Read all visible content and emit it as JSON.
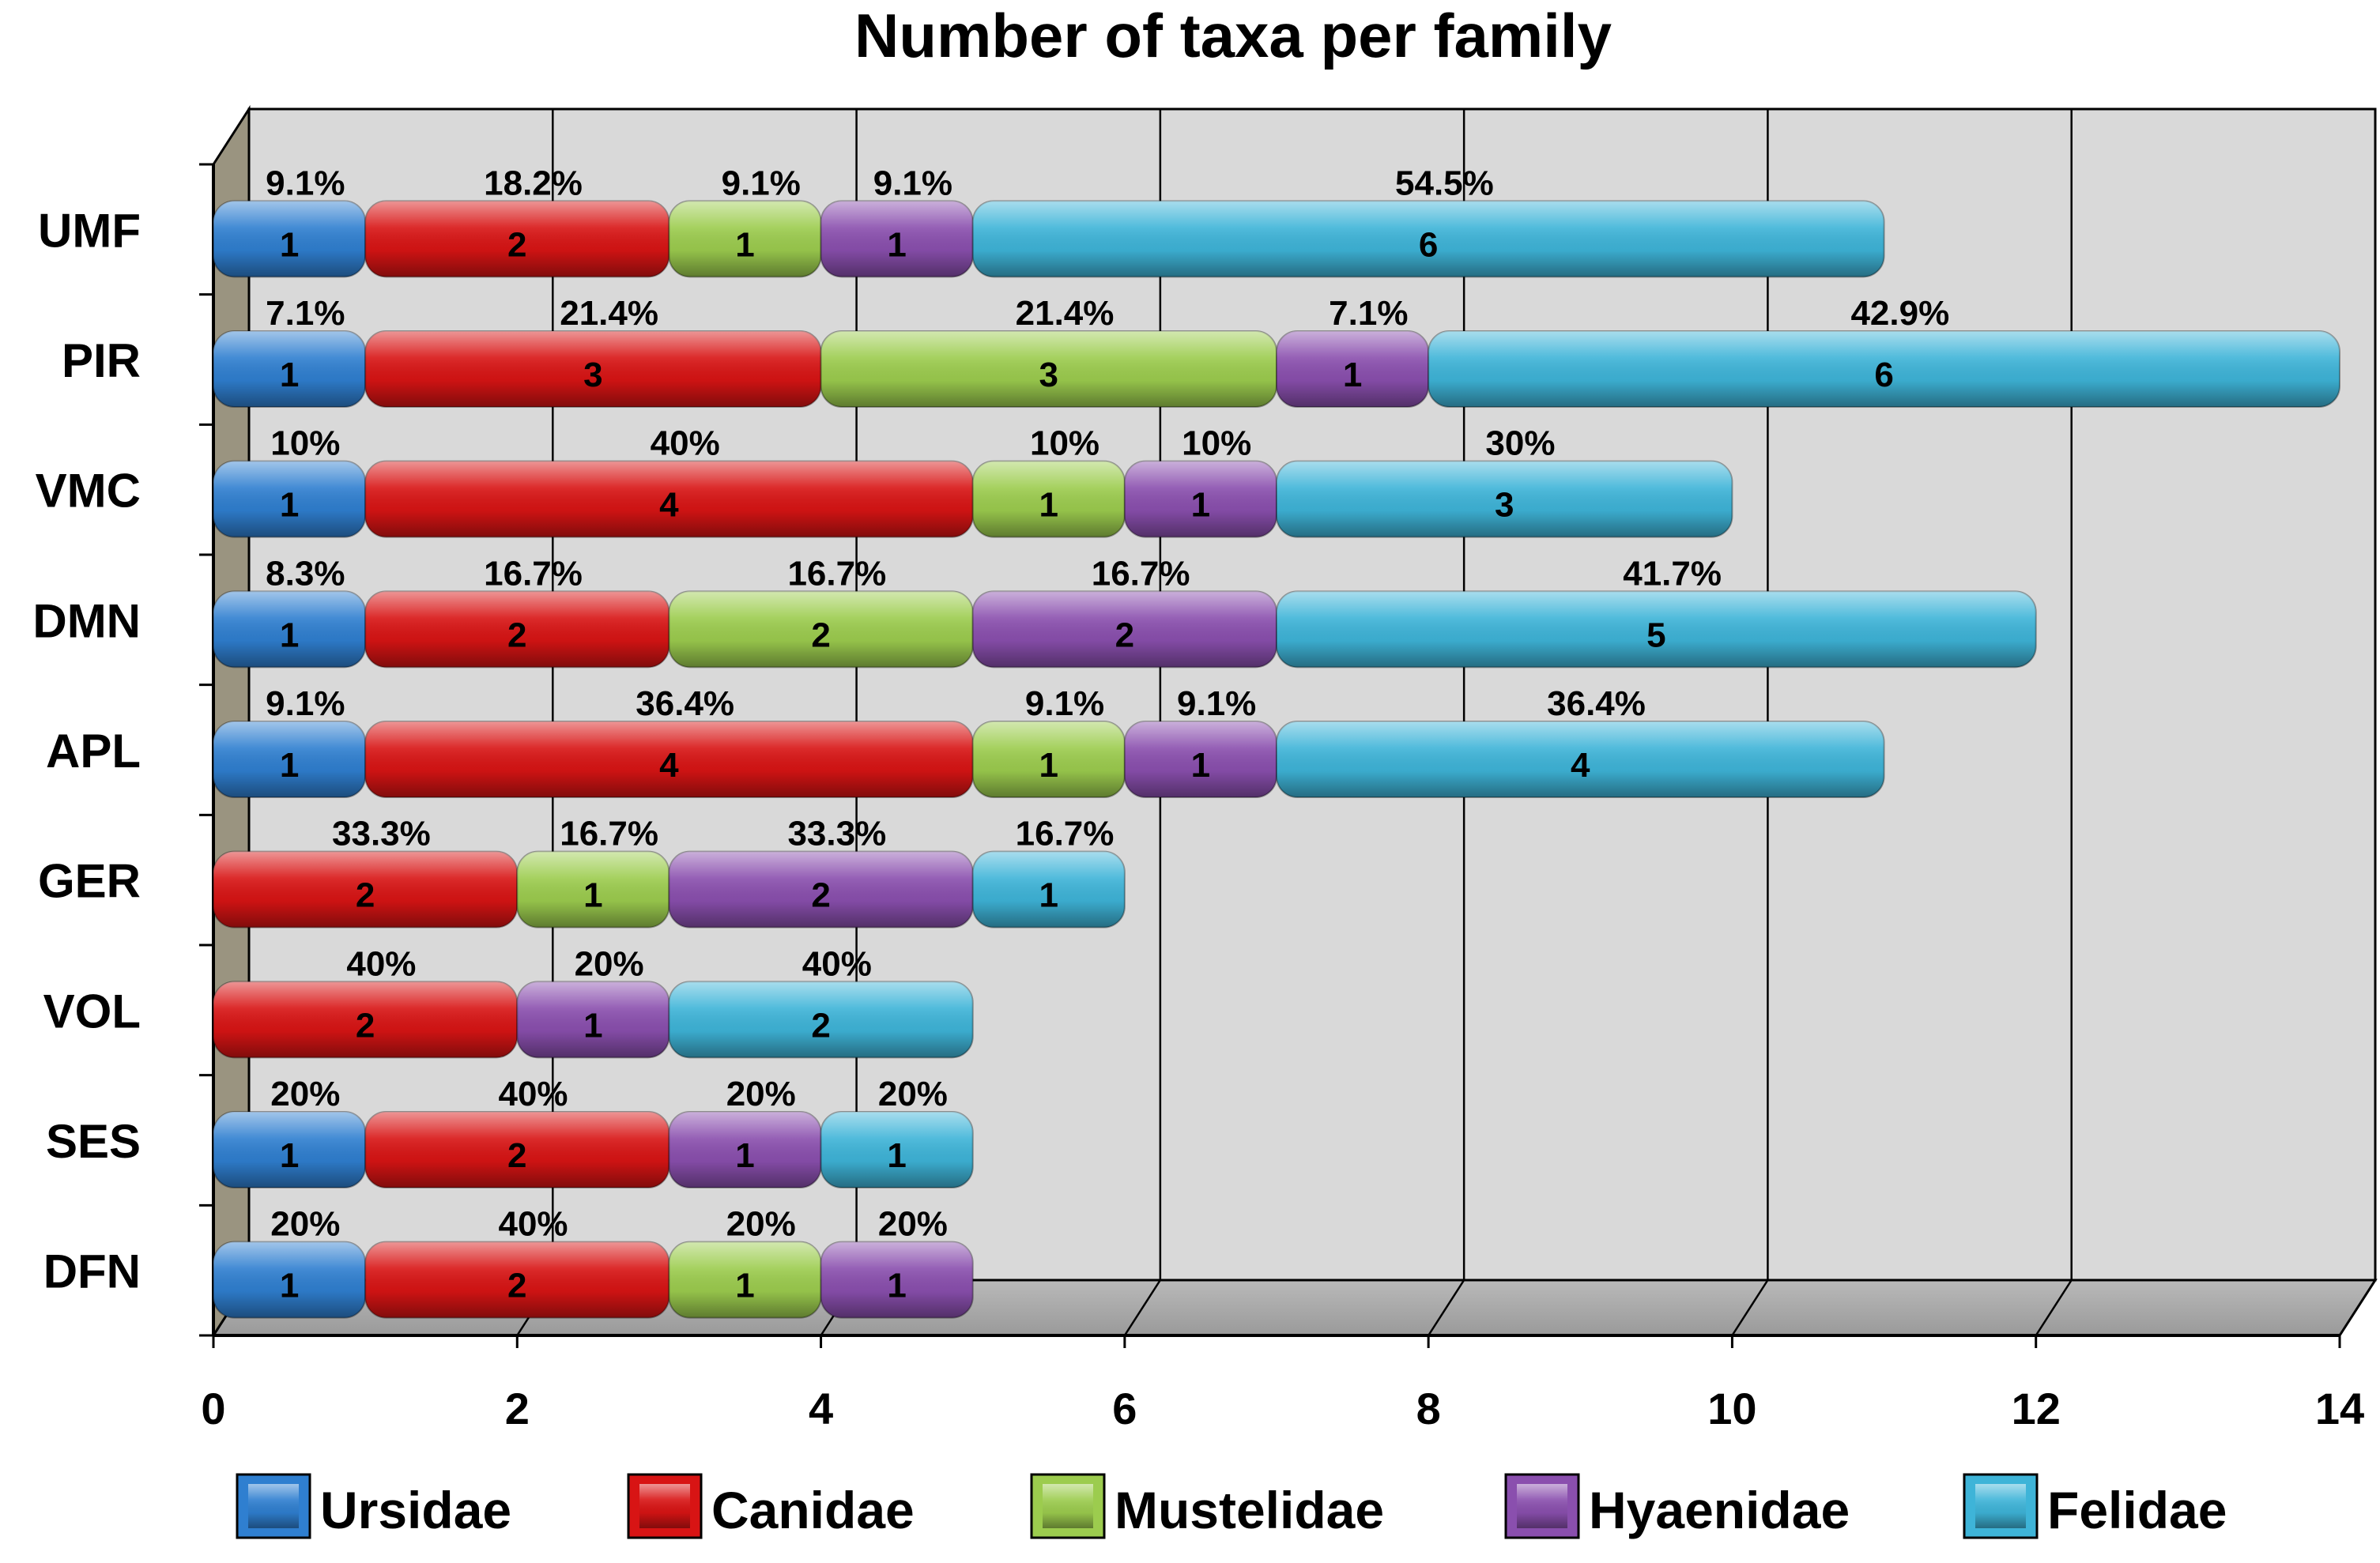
{
  "chart_data": {
    "type": "bar",
    "stacked": true,
    "orientation": "horizontal",
    "title": "Number of taxa per family",
    "xlabel": "",
    "ylabel": "",
    "xlim": [
      0,
      14
    ],
    "x_ticks": [
      "0",
      "2",
      "4",
      "6",
      "8",
      "10",
      "12",
      "14"
    ],
    "grid": true,
    "legend_position": "bottom",
    "categories": [
      "UMF",
      "PIR",
      "VMC",
      "DMN",
      "APL",
      "GER",
      "VOL",
      "SES",
      "DFN"
    ],
    "series": [
      {
        "name": "Ursidae",
        "color": "#2f7fd0",
        "values": [
          1,
          1,
          1,
          1,
          1,
          0,
          0,
          1,
          1
        ],
        "labels": [
          "9.1%",
          "7.1%",
          "10%",
          "8.3%",
          "9.1%",
          "",
          "",
          "20%",
          "20%"
        ]
      },
      {
        "name": "Canidae",
        "color": "#d81414",
        "values": [
          2,
          3,
          4,
          2,
          4,
          2,
          2,
          2,
          2
        ],
        "labels": [
          "18.2%",
          "21.4%",
          "40%",
          "16.7%",
          "36.4%",
          "33.3%",
          "40%",
          "40%",
          "40%"
        ]
      },
      {
        "name": "Mustelidae",
        "color": "#9ccc4e",
        "values": [
          1,
          3,
          1,
          2,
          1,
          1,
          0,
          0,
          1
        ],
        "labels": [
          "9.1%",
          "21.4%",
          "10%",
          "16.7%",
          "9.1%",
          "16.7%",
          "",
          "",
          "20%"
        ]
      },
      {
        "name": "Hyaenidae",
        "color": "#8a4fae",
        "values": [
          1,
          1,
          1,
          2,
          1,
          2,
          1,
          1,
          1
        ],
        "labels": [
          "9.1%",
          "7.1%",
          "10%",
          "16.7%",
          "9.1%",
          "33.3%",
          "20%",
          "20%",
          "20%"
        ]
      },
      {
        "name": "Felidae",
        "color": "#3eb4d8",
        "values": [
          6,
          6,
          3,
          5,
          4,
          1,
          2,
          1,
          0
        ],
        "labels": [
          "54.5%",
          "42.9%",
          "30%",
          "41.7%",
          "36.4%",
          "16.7%",
          "40%",
          "20%",
          ""
        ]
      }
    ]
  }
}
